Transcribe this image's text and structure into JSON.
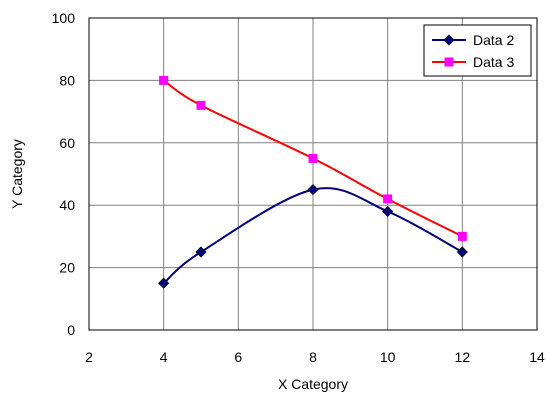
{
  "chart_data": {
    "type": "line",
    "xlabel": "X Category",
    "ylabel": "Y Category",
    "xlim": [
      2,
      14
    ],
    "ylim": [
      0,
      100
    ],
    "x_ticks": [
      2,
      4,
      6,
      8,
      10,
      12,
      14
    ],
    "y_ticks": [
      0,
      20,
      40,
      60,
      80,
      100
    ],
    "grid": true,
    "legend_position": "top-right",
    "series": [
      {
        "name": "Data 2",
        "color": "#000080",
        "marker": "diamond",
        "smooth": true,
        "x": [
          4,
          5,
          8,
          10,
          12
        ],
        "y": [
          15,
          25,
          45,
          38,
          25
        ]
      },
      {
        "name": "Data 3",
        "color": "#ff0000",
        "marker_color": "#ff00ff",
        "marker": "square",
        "smooth": true,
        "x": [
          4,
          5,
          8,
          10,
          12
        ],
        "y": [
          80,
          72,
          55,
          42,
          30
        ]
      }
    ]
  }
}
